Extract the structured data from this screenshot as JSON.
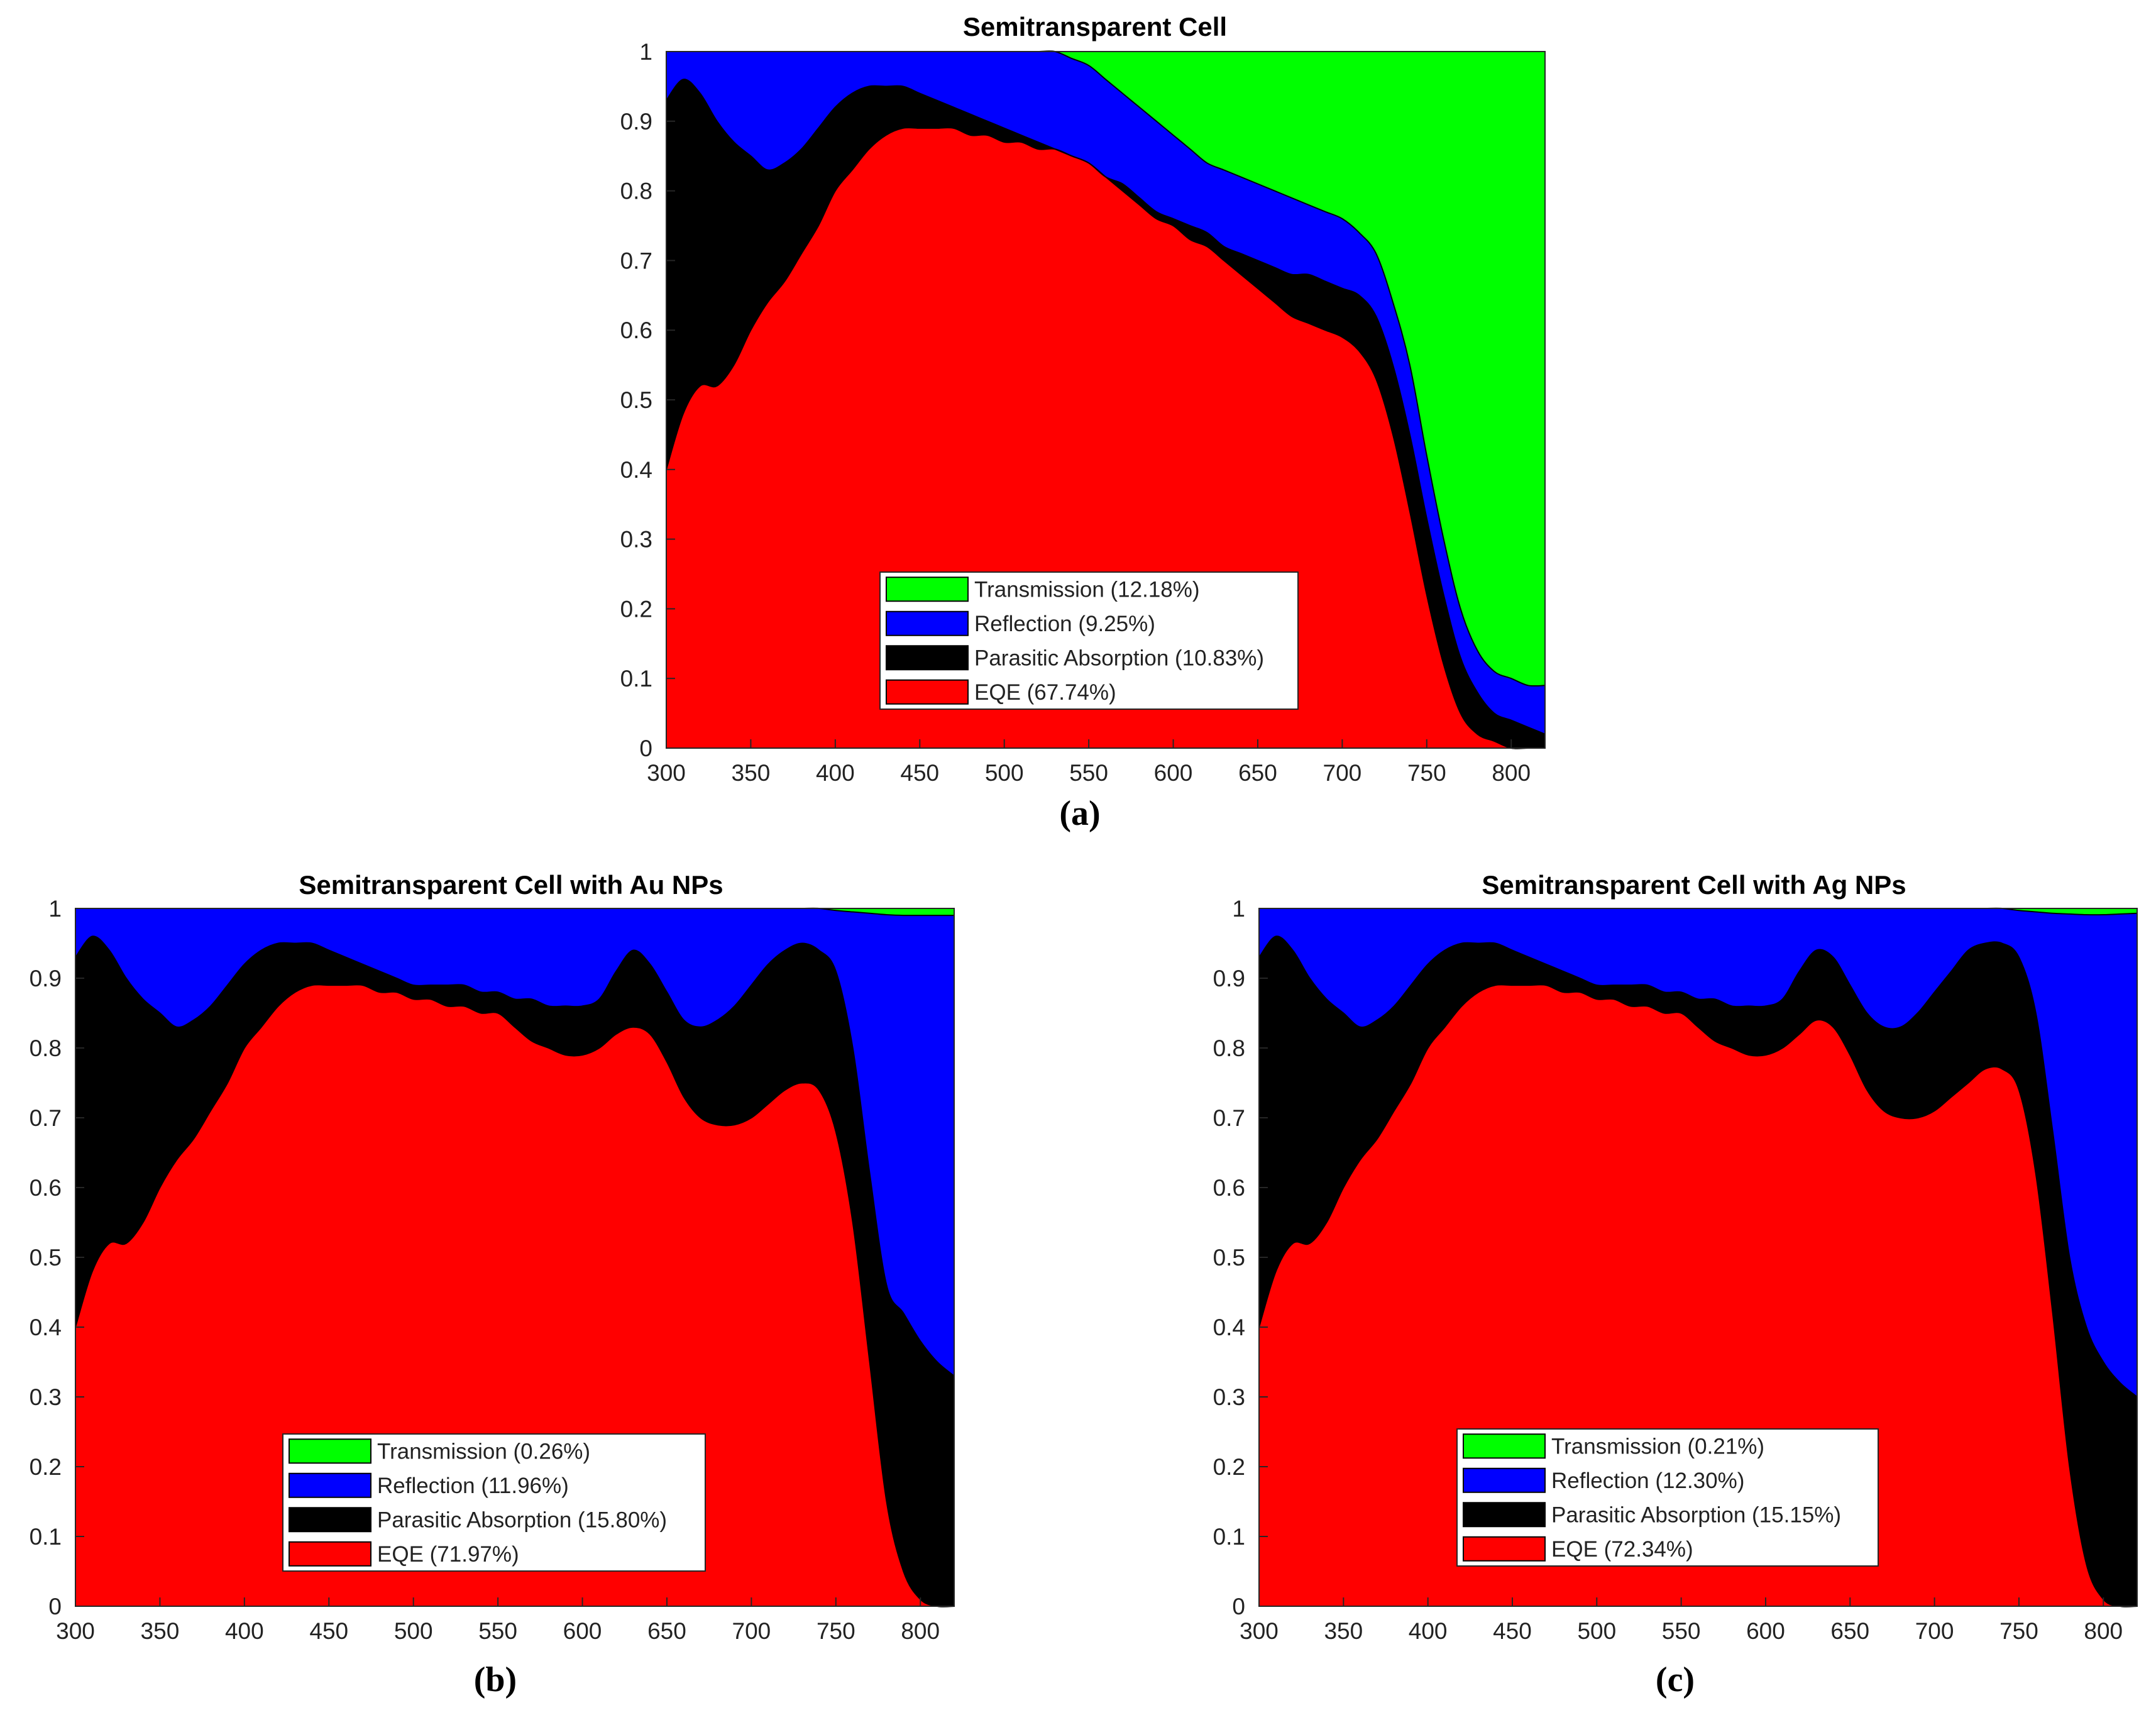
{
  "colors": {
    "transmission": "#00ff00",
    "reflection": "#0000ff",
    "parasitic": "#000000",
    "eqe": "#ff0000"
  },
  "chart_data": [
    {
      "type": "area",
      "stacked": true,
      "title": "Semitransparent Cell",
      "caption": "(a)",
      "xlabel": "",
      "ylabel": "",
      "xlim": [
        300,
        820
      ],
      "ylim": [
        0,
        1
      ],
      "xticks": [
        "300",
        "350",
        "400",
        "450",
        "500",
        "550",
        "600",
        "650",
        "700",
        "750",
        "800"
      ],
      "yticks": [
        "0",
        "0.1",
        "0.2",
        "0.3",
        "0.4",
        "0.5",
        "0.6",
        "0.7",
        "0.8",
        "0.9",
        "1"
      ],
      "legend": {
        "position": "bottom-center",
        "entries": [
          "Transmission (12.18%)",
          "Reflection (9.25%)",
          "Parasitic Absorption (10.83%)",
          "EQE (67.74%)"
        ]
      },
      "x": [
        300,
        310,
        320,
        330,
        340,
        350,
        360,
        370,
        380,
        390,
        400,
        410,
        420,
        430,
        440,
        450,
        460,
        470,
        480,
        490,
        500,
        510,
        520,
        530,
        540,
        550,
        560,
        570,
        580,
        590,
        600,
        610,
        620,
        630,
        640,
        650,
        660,
        670,
        680,
        690,
        700,
        710,
        720,
        730,
        740,
        750,
        760,
        770,
        780,
        790,
        800,
        810,
        820
      ],
      "series": [
        {
          "name": "EQE",
          "values": [
            0.4,
            0.48,
            0.52,
            0.52,
            0.55,
            0.6,
            0.64,
            0.67,
            0.71,
            0.75,
            0.8,
            0.83,
            0.86,
            0.88,
            0.89,
            0.89,
            0.89,
            0.89,
            0.88,
            0.88,
            0.87,
            0.87,
            0.86,
            0.86,
            0.85,
            0.84,
            0.82,
            0.8,
            0.78,
            0.76,
            0.75,
            0.73,
            0.72,
            0.7,
            0.68,
            0.66,
            0.64,
            0.62,
            0.61,
            0.6,
            0.59,
            0.57,
            0.53,
            0.45,
            0.34,
            0.22,
            0.12,
            0.05,
            0.02,
            0.01,
            0.0,
            0.0,
            0.0
          ]
        },
        {
          "name": "Parasitic Absorption",
          "upper": [
            0.93,
            0.96,
            0.94,
            0.9,
            0.87,
            0.85,
            0.83,
            0.84,
            0.86,
            0.89,
            0.92,
            0.94,
            0.95,
            0.95,
            0.95,
            0.94,
            0.93,
            0.92,
            0.91,
            0.9,
            0.89,
            0.88,
            0.87,
            0.86,
            0.85,
            0.84,
            0.82,
            0.81,
            0.79,
            0.77,
            0.76,
            0.75,
            0.74,
            0.72,
            0.71,
            0.7,
            0.69,
            0.68,
            0.68,
            0.67,
            0.66,
            0.65,
            0.62,
            0.55,
            0.45,
            0.33,
            0.22,
            0.13,
            0.08,
            0.05,
            0.04,
            0.03,
            0.02
          ]
        },
        {
          "name": "Reflection",
          "upper": [
            1,
            1,
            1,
            1,
            1,
            1,
            1,
            1,
            1,
            1,
            1,
            1,
            1,
            1,
            1,
            1,
            1,
            1,
            1,
            1,
            1,
            1,
            1,
            1,
            0.99,
            0.98,
            0.96,
            0.94,
            0.92,
            0.9,
            0.88,
            0.86,
            0.84,
            0.83,
            0.82,
            0.81,
            0.8,
            0.79,
            0.78,
            0.77,
            0.76,
            0.74,
            0.71,
            0.64,
            0.55,
            0.42,
            0.3,
            0.2,
            0.14,
            0.11,
            0.1,
            0.09,
            0.09
          ]
        },
        {
          "name": "Transmission",
          "upper": [
            1,
            1,
            1,
            1,
            1,
            1,
            1,
            1,
            1,
            1,
            1,
            1,
            1,
            1,
            1,
            1,
            1,
            1,
            1,
            1,
            1,
            1,
            1,
            1,
            1,
            1,
            1,
            1,
            1,
            1,
            1,
            1,
            1,
            1,
            1,
            1,
            1,
            1,
            1,
            1,
            1,
            1,
            1,
            1,
            1,
            1,
            1,
            1,
            1,
            1,
            1,
            1,
            1
          ]
        }
      ]
    },
    {
      "type": "area",
      "stacked": true,
      "title": "Semitransparent Cell with Au NPs",
      "caption": "(b)",
      "xlabel": "",
      "ylabel": "",
      "xlim": [
        300,
        820
      ],
      "ylim": [
        0,
        1
      ],
      "xticks": [
        "300",
        "350",
        "400",
        "450",
        "500",
        "550",
        "600",
        "650",
        "700",
        "750",
        "800"
      ],
      "yticks": [
        "0",
        "0.1",
        "0.2",
        "0.3",
        "0.4",
        "0.5",
        "0.6",
        "0.7",
        "0.8",
        "0.9",
        "1"
      ],
      "legend": {
        "position": "bottom-center",
        "entries": [
          "Transmission (0.26%)",
          "Reflection (11.96%)",
          "Parasitic Absorption (15.80%)",
          "EQE (71.97%)"
        ]
      },
      "x": [
        300,
        310,
        320,
        330,
        340,
        350,
        360,
        370,
        380,
        390,
        400,
        410,
        420,
        430,
        440,
        450,
        460,
        470,
        480,
        490,
        500,
        510,
        520,
        530,
        540,
        550,
        560,
        570,
        580,
        590,
        600,
        610,
        620,
        630,
        640,
        650,
        660,
        670,
        680,
        690,
        700,
        710,
        720,
        730,
        740,
        750,
        760,
        770,
        780,
        790,
        800,
        810,
        820
      ],
      "series": [
        {
          "name": "EQE",
          "values": [
            0.4,
            0.48,
            0.52,
            0.52,
            0.55,
            0.6,
            0.64,
            0.67,
            0.71,
            0.75,
            0.8,
            0.83,
            0.86,
            0.88,
            0.89,
            0.89,
            0.89,
            0.89,
            0.88,
            0.88,
            0.87,
            0.87,
            0.86,
            0.86,
            0.85,
            0.85,
            0.83,
            0.81,
            0.8,
            0.79,
            0.79,
            0.8,
            0.82,
            0.83,
            0.82,
            0.78,
            0.73,
            0.7,
            0.69,
            0.69,
            0.7,
            0.72,
            0.74,
            0.75,
            0.74,
            0.68,
            0.55,
            0.35,
            0.15,
            0.05,
            0.01,
            0.0,
            0.0
          ]
        },
        {
          "name": "Parasitic Absorption",
          "upper": [
            0.93,
            0.96,
            0.94,
            0.9,
            0.87,
            0.85,
            0.83,
            0.84,
            0.86,
            0.89,
            0.92,
            0.94,
            0.95,
            0.95,
            0.95,
            0.94,
            0.93,
            0.92,
            0.91,
            0.9,
            0.89,
            0.89,
            0.89,
            0.89,
            0.88,
            0.88,
            0.87,
            0.87,
            0.86,
            0.86,
            0.86,
            0.87,
            0.91,
            0.94,
            0.92,
            0.88,
            0.84,
            0.83,
            0.84,
            0.86,
            0.89,
            0.92,
            0.94,
            0.95,
            0.94,
            0.91,
            0.8,
            0.62,
            0.46,
            0.42,
            0.38,
            0.35,
            0.33
          ]
        },
        {
          "name": "Reflection",
          "upper": [
            1,
            1,
            1,
            1,
            1,
            1,
            1,
            1,
            1,
            1,
            1,
            1,
            1,
            1,
            1,
            1,
            1,
            1,
            1,
            1,
            1,
            1,
            1,
            1,
            1,
            1,
            1,
            1,
            1,
            1,
            1,
            1,
            1,
            1,
            1,
            1,
            1,
            1,
            1,
            1,
            1,
            1,
            1,
            1,
            1,
            0.997,
            0.995,
            0.993,
            0.991,
            0.99,
            0.99,
            0.99,
            0.99
          ]
        },
        {
          "name": "Transmission",
          "upper": [
            1,
            1,
            1,
            1,
            1,
            1,
            1,
            1,
            1,
            1,
            1,
            1,
            1,
            1,
            1,
            1,
            1,
            1,
            1,
            1,
            1,
            1,
            1,
            1,
            1,
            1,
            1,
            1,
            1,
            1,
            1,
            1,
            1,
            1,
            1,
            1,
            1,
            1,
            1,
            1,
            1,
            1,
            1,
            1,
            1,
            1,
            1,
            1,
            1,
            1,
            1,
            1,
            1
          ]
        }
      ]
    },
    {
      "type": "area",
      "stacked": true,
      "title": "Semitransparent Cell with Ag NPs",
      "caption": "(c)",
      "xlabel": "",
      "ylabel": "",
      "xlim": [
        300,
        820
      ],
      "ylim": [
        0,
        1
      ],
      "xticks": [
        "300",
        "350",
        "400",
        "450",
        "500",
        "550",
        "600",
        "650",
        "700",
        "750",
        "800"
      ],
      "yticks": [
        "0",
        "0.1",
        "0.2",
        "0.3",
        "0.4",
        "0.5",
        "0.6",
        "0.7",
        "0.8",
        "0.9",
        "1"
      ],
      "legend": {
        "position": "bottom-center",
        "entries": [
          "Transmission (0.21%)",
          "Reflection (12.30%)",
          "Parasitic Absorption (15.15%)",
          "EQE (72.34%)"
        ]
      },
      "x": [
        300,
        310,
        320,
        330,
        340,
        350,
        360,
        370,
        380,
        390,
        400,
        410,
        420,
        430,
        440,
        450,
        460,
        470,
        480,
        490,
        500,
        510,
        520,
        530,
        540,
        550,
        560,
        570,
        580,
        590,
        600,
        610,
        620,
        630,
        640,
        650,
        660,
        670,
        680,
        690,
        700,
        710,
        720,
        730,
        740,
        750,
        760,
        770,
        780,
        790,
        800,
        810,
        820
      ],
      "series": [
        {
          "name": "EQE",
          "values": [
            0.4,
            0.48,
            0.52,
            0.52,
            0.55,
            0.6,
            0.64,
            0.67,
            0.71,
            0.75,
            0.8,
            0.83,
            0.86,
            0.88,
            0.89,
            0.89,
            0.89,
            0.89,
            0.88,
            0.88,
            0.87,
            0.87,
            0.86,
            0.86,
            0.85,
            0.85,
            0.83,
            0.81,
            0.8,
            0.79,
            0.79,
            0.8,
            0.82,
            0.84,
            0.83,
            0.79,
            0.74,
            0.71,
            0.7,
            0.7,
            0.71,
            0.73,
            0.75,
            0.77,
            0.77,
            0.74,
            0.62,
            0.42,
            0.2,
            0.06,
            0.01,
            0.0,
            0.0
          ]
        },
        {
          "name": "Parasitic Absorption",
          "upper": [
            0.93,
            0.96,
            0.94,
            0.9,
            0.87,
            0.85,
            0.83,
            0.84,
            0.86,
            0.89,
            0.92,
            0.94,
            0.95,
            0.95,
            0.95,
            0.94,
            0.93,
            0.92,
            0.91,
            0.9,
            0.89,
            0.89,
            0.89,
            0.89,
            0.88,
            0.88,
            0.87,
            0.87,
            0.86,
            0.86,
            0.86,
            0.87,
            0.91,
            0.94,
            0.93,
            0.89,
            0.85,
            0.83,
            0.83,
            0.85,
            0.88,
            0.91,
            0.94,
            0.95,
            0.95,
            0.93,
            0.85,
            0.68,
            0.5,
            0.4,
            0.35,
            0.32,
            0.3
          ]
        },
        {
          "name": "Reflection",
          "upper": [
            1,
            1,
            1,
            1,
            1,
            1,
            1,
            1,
            1,
            1,
            1,
            1,
            1,
            1,
            1,
            1,
            1,
            1,
            1,
            1,
            1,
            1,
            1,
            1,
            1,
            1,
            1,
            1,
            1,
            1,
            1,
            1,
            1,
            1,
            1,
            1,
            1,
            1,
            1,
            1,
            1,
            1,
            1,
            1,
            1,
            0.997,
            0.995,
            0.993,
            0.992,
            0.991,
            0.991,
            0.992,
            0.993
          ]
        },
        {
          "name": "Transmission",
          "upper": [
            1,
            1,
            1,
            1,
            1,
            1,
            1,
            1,
            1,
            1,
            1,
            1,
            1,
            1,
            1,
            1,
            1,
            1,
            1,
            1,
            1,
            1,
            1,
            1,
            1,
            1,
            1,
            1,
            1,
            1,
            1,
            1,
            1,
            1,
            1,
            1,
            1,
            1,
            1,
            1,
            1,
            1,
            1,
            1,
            1,
            1,
            1,
            1,
            1,
            1,
            1,
            1,
            1
          ]
        }
      ]
    }
  ]
}
